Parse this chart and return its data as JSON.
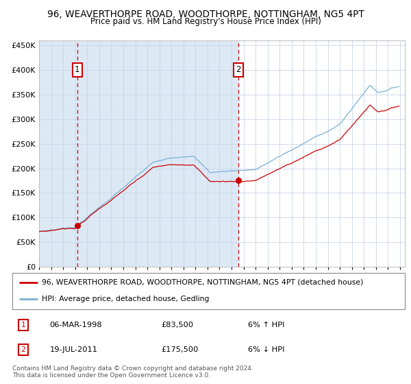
{
  "title1": "96, WEAVERTHORPE ROAD, WOODTHORPE, NOTTINGHAM, NG5 4PT",
  "title2": "Price paid vs. HM Land Registry's House Price Index (HPI)",
  "legend_line1": "96, WEAVERTHORPE ROAD, WOODTHORPE, NOTTINGHAM, NG5 4PT (detached house)",
  "legend_line2": "HPI: Average price, detached house, Gedling",
  "annotation1_date": "06-MAR-1998",
  "annotation1_price": "£83,500",
  "annotation1_hpi": "6% ↑ HPI",
  "annotation2_date": "19-JUL-2011",
  "annotation2_price": "£175,500",
  "annotation2_hpi": "6% ↓ HPI",
  "footnote1": "Contains HM Land Registry data © Crown copyright and database right 2024.",
  "footnote2": "This data is licensed under the Open Government Licence v3.0.",
  "sale1_year": 1998.18,
  "sale1_value": 83500,
  "sale2_year": 2011.55,
  "sale2_value": 175500,
  "ylim_min": 0,
  "ylim_max": 460000,
  "yticks": [
    0,
    50000,
    100000,
    150000,
    200000,
    250000,
    300000,
    350000,
    400000,
    450000
  ],
  "start_year": 1995,
  "end_year": 2025,
  "red_color": "#cc0000",
  "blue_color": "#7ab0d4",
  "bg_color": "#dce9f5",
  "grid_color": "#c8d4e8",
  "box_color": "#cc0000"
}
